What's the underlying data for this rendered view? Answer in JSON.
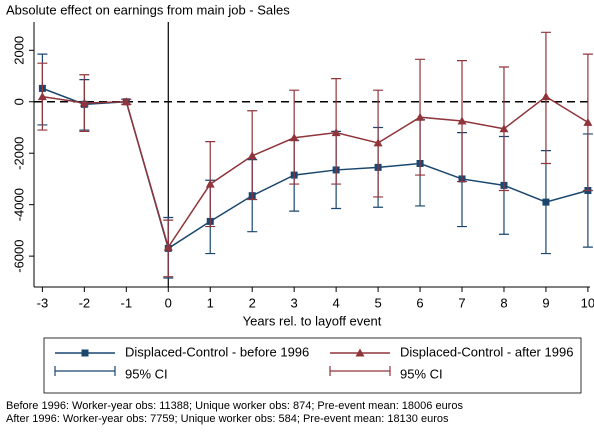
{
  "chart_data": {
    "type": "line",
    "title": "Absolute effect on earnings from main job - Sales",
    "xlabel": "Years rel. to layoff event",
    "x": [
      -3,
      -2,
      -1,
      0,
      1,
      2,
      3,
      4,
      5,
      6,
      7,
      8,
      9,
      10
    ],
    "series": [
      {
        "name": "Displaced-Control - before 1996",
        "ci_name": "95% CI",
        "color": "#1a476f",
        "marker": "square",
        "values": [
          520,
          -100,
          0,
          -5700,
          -4650,
          -3650,
          -2850,
          -2650,
          -2550,
          -2400,
          -3000,
          -3250,
          -3900,
          -3450
        ],
        "lower": [
          -900,
          -1100,
          -100,
          -6850,
          -5900,
          -5050,
          -4250,
          -4150,
          -4100,
          -4050,
          -4850,
          -5150,
          -5900,
          -5650
        ],
        "upper": [
          1850,
          860,
          100,
          -4500,
          -3050,
          -2250,
          -1500,
          -1150,
          -1000,
          -700,
          -1200,
          -1350,
          -1900,
          -1250
        ]
      },
      {
        "name": "Displaced-Control - after 1996",
        "ci_name": "95% CI",
        "color": "#90353b",
        "marker": "triangle",
        "values": [
          200,
          -50,
          0,
          -5650,
          -3200,
          -2100,
          -1400,
          -1200,
          -1600,
          -600,
          -750,
          -1050,
          200,
          -800
        ],
        "lower": [
          -1100,
          -1150,
          -100,
          -6800,
          -4850,
          -3800,
          -3200,
          -3200,
          -3700,
          -2850,
          -3100,
          -3450,
          -2400,
          -3450
        ],
        "upper": [
          1500,
          1050,
          100,
          -4600,
          -1550,
          -350,
          450,
          900,
          450,
          1650,
          1600,
          1350,
          2700,
          1850
        ]
      }
    ],
    "xlim": [
      -3.2,
      10.05
    ],
    "xticks": [
      -3,
      -2,
      -1,
      0,
      1,
      2,
      3,
      4,
      5,
      6,
      7,
      8,
      9,
      10
    ],
    "ylim": [
      -7200,
      3100
    ],
    "yticks": [
      -6000,
      -4000,
      -2000,
      0,
      2000
    ],
    "reference_lines": {
      "x": 0,
      "y": 0
    },
    "notes": [
      "Before 1996: Worker-year obs: 11388; Unique worker obs: 874; Pre-event mean: 18006 euros",
      "After 1996: Worker-year obs: 7759; Unique worker obs: 584; Pre-event mean: 18130 euros"
    ]
  }
}
